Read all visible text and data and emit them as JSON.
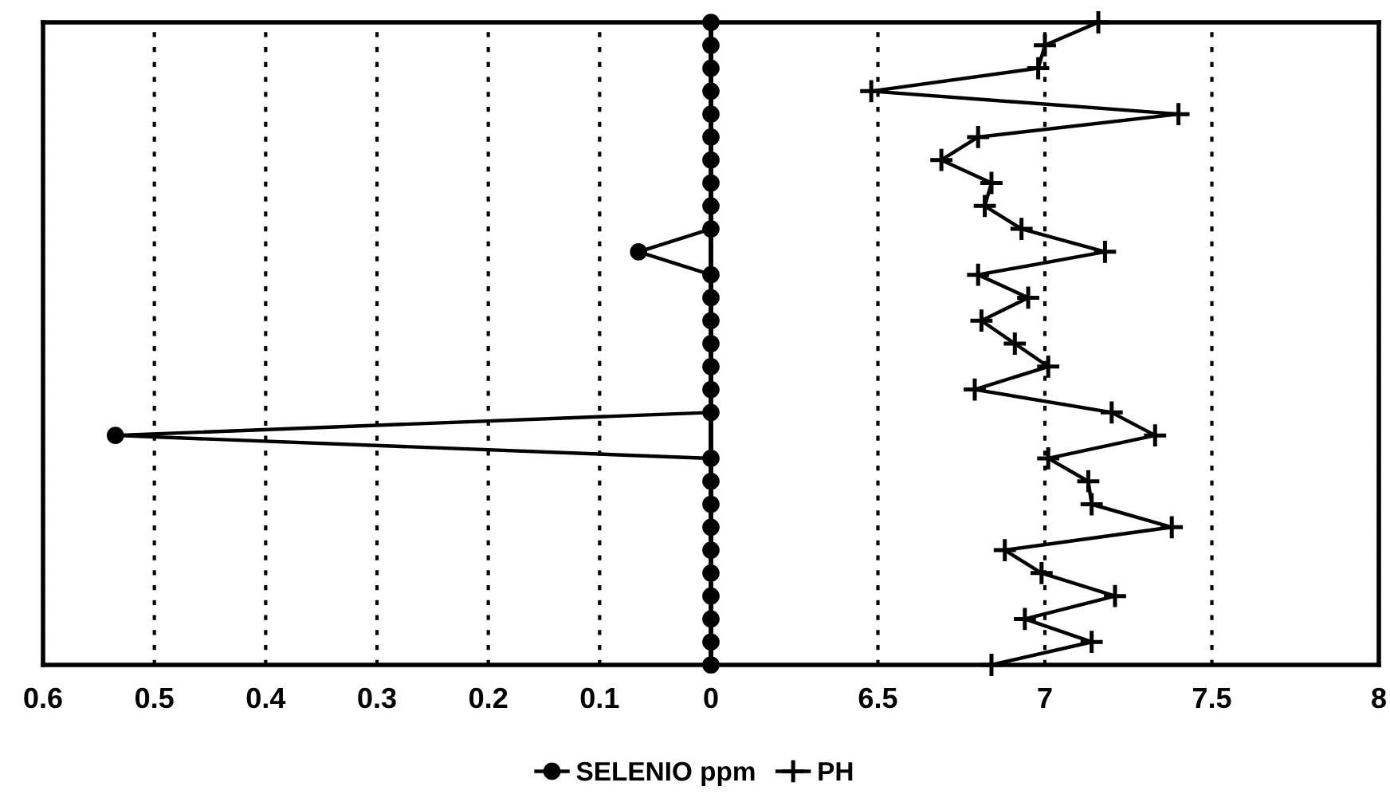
{
  "chart_data": [
    {
      "type": "line",
      "orientation": "horizontal",
      "categories": [
        null,
        null,
        null,
        null,
        null,
        null,
        null,
        null,
        null,
        null,
        null,
        null,
        null,
        null,
        null,
        null,
        null,
        null,
        null,
        null,
        null,
        null,
        null,
        null,
        null,
        null,
        null,
        null,
        null
      ],
      "series": [
        {
          "name": "SELENIO ppm",
          "color": "#000000",
          "marker": "circle",
          "values": [
            0,
            0,
            0,
            0,
            0,
            0,
            0,
            0,
            0,
            0,
            0.065,
            0,
            0,
            0,
            0,
            0,
            0,
            0,
            0.535,
            0,
            0,
            0,
            0,
            0,
            0,
            0,
            0,
            0,
            0
          ]
        }
      ],
      "xlim": [
        0.6,
        0
      ],
      "xticks": [
        0.6,
        0.5,
        0.4,
        0.3,
        0.2,
        0.1,
        0
      ],
      "grid": "x",
      "tick_labels": "x",
      "legend": "bottom"
    },
    {
      "type": "line",
      "orientation": "horizontal",
      "categories": [
        null,
        null,
        null,
        null,
        null,
        null,
        null,
        null,
        null,
        null,
        null,
        null,
        null,
        null,
        null,
        null,
        null,
        null,
        null,
        null,
        null,
        null,
        null,
        null,
        null,
        null,
        null,
        null,
        null
      ],
      "series": [
        {
          "name": "PH",
          "color": "#000000",
          "marker": "cross",
          "values": [
            7.16,
            7.0,
            6.98,
            6.48,
            7.4,
            6.8,
            6.69,
            6.84,
            6.82,
            6.93,
            7.18,
            6.8,
            6.95,
            6.81,
            6.91,
            7.01,
            6.79,
            7.2,
            7.33,
            7.01,
            7.13,
            7.14,
            7.38,
            6.88,
            6.99,
            7.21,
            6.94,
            7.14,
            6.84
          ]
        }
      ],
      "xlim": [
        6,
        8
      ],
      "xticks": [
        {
          "value": 6,
          "label": null
        },
        6.5,
        7,
        7.5,
        8
      ],
      "grid": "x",
      "tick_labels": "x",
      "legend": "bottom"
    }
  ]
}
